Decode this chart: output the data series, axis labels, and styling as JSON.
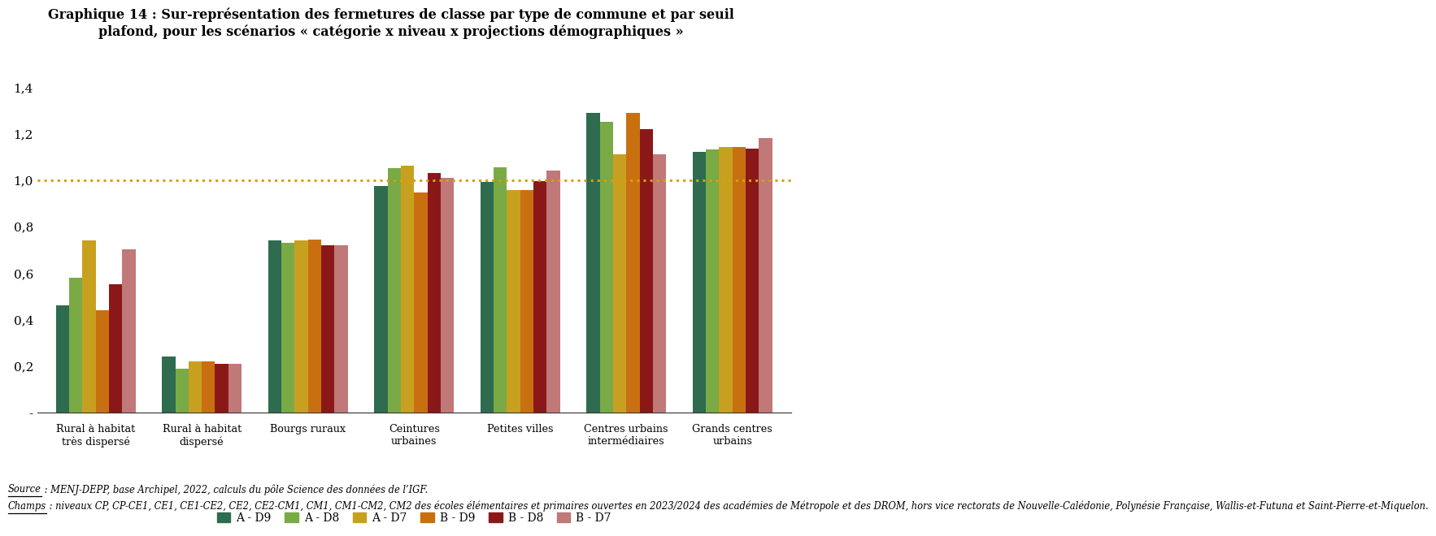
{
  "title_line1": "Graphique 14 : Sur-représentation des fermetures de classe par type de commune et par seuil",
  "title_line2": "plafond, pour les scénarios « catégorie x niveau x projections démographiques »",
  "categories": [
    "Rural à habitat\ntrès dispersé",
    "Rural à habitat\ndispersé",
    "Bourgs ruraux",
    "Ceintures\nurbaines",
    "Petites villes",
    "Centres urbains\nintermédiaires",
    "Grands centres\nurbains"
  ],
  "series_names": [
    "A - D9",
    "A - D8",
    "A - D7",
    "B - D9",
    "B - D8",
    "B - D7"
  ],
  "series_values": [
    [
      0.46,
      0.24,
      0.74,
      0.975,
      0.99,
      1.29,
      1.12
    ],
    [
      0.58,
      0.19,
      0.73,
      1.05,
      1.055,
      1.25,
      1.13
    ],
    [
      0.74,
      0.22,
      0.74,
      1.06,
      0.955,
      1.11,
      1.14
    ],
    [
      0.44,
      0.22,
      0.745,
      0.945,
      0.955,
      1.29,
      1.14
    ],
    [
      0.55,
      0.21,
      0.72,
      1.03,
      0.995,
      1.22,
      1.135
    ],
    [
      0.7,
      0.21,
      0.72,
      1.01,
      1.04,
      1.11,
      1.18
    ]
  ],
  "colors": [
    "#2e6b4f",
    "#7aaa45",
    "#c8a020",
    "#c87010",
    "#8b1818",
    "#c07878"
  ],
  "ylim": [
    0,
    1.45
  ],
  "yticks": [
    0.0,
    0.2,
    0.4,
    0.6,
    0.8,
    1.0,
    1.2,
    1.4
  ],
  "ytick_labels": [
    "-",
    "0,2",
    "0,4",
    "0,6",
    "0,8",
    "1,0",
    "1,2",
    "1,4"
  ],
  "hline_y": 1.0,
  "hline_color": "#d4a010",
  "source_word": "Source",
  "source_rest": " : MENJ-DEPP, base Archipel, 2022, calculs du pôle Science des données de l’IGF.",
  "champs_word": "Champs",
  "champs_rest": " : niveaux CP, CP-CE1, CE1, CE1-CE2, CE2, CE2-CM1, CM1, CM1-CM2, CM2 des écoles élémentaires et primaires ouvertes en 2023/2024 des académies de Métropole et des DROM, hors vice rectorats de Nouvelle-Calédonie, Polynésie Française, Wallis-et-Futuna et Saint-Pierre-et-Miquelon.",
  "background_color": "#ffffff",
  "bar_width": 0.125
}
